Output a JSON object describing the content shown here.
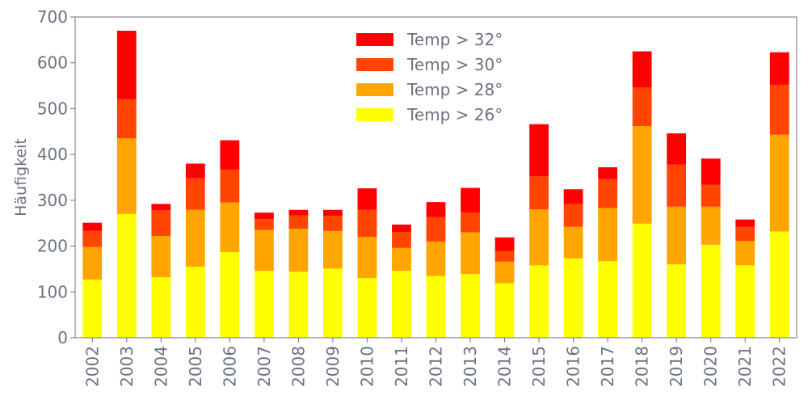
{
  "chart_data": {
    "type": "bar",
    "stacked": true,
    "title": "",
    "xlabel": "",
    "ylabel": "Häufigkeit",
    "ylim": [
      0,
      700
    ],
    "yticks": [
      0,
      100,
      200,
      300,
      400,
      500,
      600,
      700
    ],
    "grid": false,
    "legend_position": "top-center",
    "categories": [
      "2002",
      "2003",
      "2004",
      "2005",
      "2006",
      "2007",
      "2008",
      "2009",
      "2010",
      "2011",
      "2012",
      "2013",
      "2014",
      "2015",
      "2016",
      "2017",
      "2018",
      "2019",
      "2020",
      "2021",
      "2022"
    ],
    "series": [
      {
        "name": "Temp > 26°",
        "color": "#ffff00",
        "values": [
          127,
          270,
          132,
          155,
          187,
          146,
          144,
          151,
          130,
          146,
          135,
          139,
          119,
          158,
          173,
          167,
          249,
          160,
          203,
          158,
          232
        ]
      },
      {
        "name": "Temp > 28°",
        "color": "#ffa500",
        "values": [
          71,
          165,
          90,
          124,
          108,
          89,
          94,
          82,
          90,
          50,
          75,
          91,
          47,
          122,
          69,
          116,
          213,
          126,
          83,
          53,
          211
        ]
      },
      {
        "name": "Temp > 30°",
        "color": "#ff4500",
        "values": [
          35,
          86,
          56,
          69,
          72,
          24,
          29,
          33,
          59,
          35,
          53,
          43,
          23,
          72,
          50,
          63,
          84,
          92,
          48,
          31,
          109
        ]
      },
      {
        "name": "Temp > 32°",
        "color": "#ff0000",
        "values": [
          18,
          149,
          14,
          32,
          64,
          14,
          12,
          13,
          47,
          16,
          33,
          54,
          30,
          114,
          32,
          26,
          79,
          68,
          57,
          16,
          71
        ]
      }
    ]
  }
}
